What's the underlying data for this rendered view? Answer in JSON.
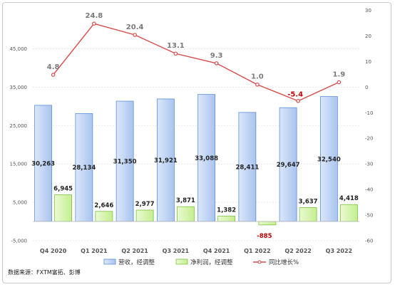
{
  "chart_data": {
    "type": "bar",
    "categories": [
      "Q4 2020",
      "Q1 2021",
      "Q2 2021",
      "Q3 2021",
      "Q4 2021",
      "Q1 2022",
      "Q2 2022",
      "Q3 2022"
    ],
    "series": [
      {
        "name": "营收，经调整",
        "type": "bar",
        "axis": "left",
        "color": "#a9c4ee",
        "values": [
          30263,
          28134,
          31350,
          31921,
          33088,
          28411,
          29647,
          32540
        ],
        "labels": [
          "30,263",
          "28,134",
          "31,350",
          "31,921",
          "33,088",
          "28,411",
          "29,647",
          "32,540"
        ]
      },
      {
        "name": "净利润，经调整",
        "type": "bar",
        "axis": "left",
        "color": "#c4ee8e",
        "values": [
          6945,
          2646,
          2977,
          3871,
          1382,
          -885,
          3637,
          4418
        ],
        "labels": [
          "6,945",
          "2,646",
          "2,977",
          "3,871",
          "1,382",
          "-885",
          "3,637",
          "4,418"
        ]
      },
      {
        "name": "同比增长%",
        "type": "line",
        "axis": "right",
        "color": "#d94a4a",
        "values": [
          4.8,
          24.8,
          20.4,
          13.1,
          9.3,
          1.0,
          -5.4,
          1.9
        ],
        "labels": [
          "4.8",
          "24.8",
          "20.4",
          "13.1",
          "9.3",
          "1.0",
          "-5.4",
          "1.9"
        ]
      }
    ],
    "y_left": {
      "range": [
        -5000,
        55000
      ],
      "ticks": [
        "-5,000",
        "5,000",
        "15,000",
        "25,000",
        "35,000",
        "45,000"
      ]
    },
    "y_right": {
      "range": [
        -60,
        30
      ],
      "ticks": [
        "30",
        "20",
        "10",
        "0",
        "-10",
        "-20",
        "-30",
        "-40",
        "-50",
        "-60"
      ]
    },
    "grid": true,
    "legend": "bottom"
  },
  "source": "数据来源：FXTM富拓、彭博"
}
